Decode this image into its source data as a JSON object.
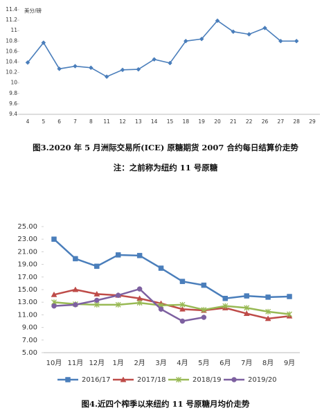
{
  "chart_data": [
    {
      "type": "line",
      "title": "图3.2020 年 5 月洲际交易所(ICE) 原糖期货 2007 合约每日结算价走势",
      "note": "注：之前称为纽约 11 号原糖",
      "y_label": "美分/磅",
      "categories": [
        "4",
        "5",
        "6",
        "7",
        "8",
        "11",
        "12",
        "13",
        "14",
        "15",
        "18",
        "19",
        "20",
        "21",
        "22",
        "26",
        "27",
        "28",
        "29"
      ],
      "series": [
        {
          "name": null,
          "color": "#4a7ebb",
          "marker": "diamond",
          "values": [
            10.39,
            10.77,
            10.27,
            10.32,
            10.29,
            10.12,
            10.25,
            10.26,
            10.45,
            10.38,
            10.8,
            10.84,
            11.19,
            10.98,
            10.93,
            11.05,
            10.8,
            10.8,
            null
          ]
        }
      ],
      "ylim": [
        9.4,
        11.4
      ],
      "yticks": [
        9.4,
        9.6,
        9.8,
        10,
        10.2,
        10.4,
        10.6,
        10.8,
        11,
        11.2,
        11.4
      ],
      "grid": false
    },
    {
      "type": "line",
      "title": "图4.近四个榨季以来纽约 11 号原糖月均价走势",
      "categories": [
        "10月",
        "11月",
        "12月",
        "1月",
        "2月",
        "3月",
        "4月",
        "5月",
        "6月",
        "7月",
        "8月",
        "9月"
      ],
      "series": [
        {
          "name": "2016/17",
          "color": "#4a7ebb",
          "marker": "square",
          "values": [
            23.0,
            19.9,
            18.7,
            20.5,
            20.4,
            18.4,
            16.3,
            15.7,
            13.6,
            14.0,
            13.8,
            13.9
          ]
        },
        {
          "name": "2017/18",
          "color": "#be4b48",
          "marker": "triangle",
          "values": [
            14.2,
            15.0,
            14.3,
            14.1,
            13.6,
            12.8,
            11.9,
            11.7,
            12.1,
            11.2,
            10.4,
            10.8
          ]
        },
        {
          "name": "2018/19",
          "color": "#98b954",
          "marker": "star",
          "values": [
            13.0,
            12.7,
            12.6,
            12.6,
            12.9,
            12.5,
            12.6,
            11.8,
            12.4,
            12.1,
            11.5,
            11.1
          ]
        },
        {
          "name": "2019/20",
          "color": "#7d60a0",
          "marker": "circle",
          "values": [
            12.4,
            12.6,
            13.3,
            14.1,
            15.1,
            11.9,
            10.0,
            10.6,
            null,
            null,
            null,
            null
          ]
        }
      ],
      "ylim": [
        5,
        25
      ],
      "yticks": [
        {
          "value": 5,
          "label": "5.00"
        },
        {
          "value": 7,
          "label": "7.00"
        },
        {
          "value": 9,
          "label": "9.00"
        },
        {
          "value": 11,
          "label": "11.00"
        },
        {
          "value": 13,
          "label": "13.00"
        },
        {
          "value": 15,
          "label": "15.00"
        },
        {
          "value": 17,
          "label": "17.00"
        },
        {
          "value": 19,
          "label": "19.00"
        },
        {
          "value": 21,
          "label": "21.00"
        },
        {
          "value": 23,
          "label": "23.00"
        },
        {
          "value": 25,
          "label": "25.00"
        }
      ],
      "grid": false,
      "legend": "bottom"
    }
  ]
}
